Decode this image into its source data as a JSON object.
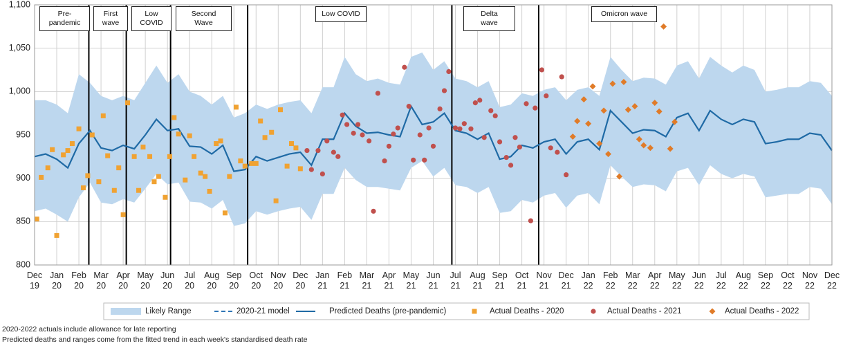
{
  "chart_data": {
    "type": "line",
    "x": [
      0,
      0.5,
      1,
      1.5,
      2,
      2.5,
      3,
      3.5,
      4,
      4.5,
      5,
      5.5,
      6,
      6.5,
      7,
      7.5,
      8,
      8.5,
      9,
      9.5,
      10,
      10.5,
      11,
      11.5,
      12,
      12.5,
      13,
      13.5,
      14,
      14.5,
      15,
      15.5,
      16,
      16.5,
      17,
      17.5,
      18,
      18.5,
      19,
      19.5,
      20,
      20.5,
      21,
      21.5,
      22,
      22.5,
      23,
      23.5,
      24,
      24.5,
      25,
      25.5,
      26,
      26.5,
      27,
      27.5,
      28,
      28.5,
      29,
      29.5,
      30,
      30.5,
      31,
      31.5,
      32,
      32.5,
      33,
      33.5,
      34,
      34.5,
      35,
      35.5,
      36
    ],
    "xlim": [
      0,
      36
    ],
    "xticks": [
      {
        "value": 0,
        "label": "Dec 19"
      },
      {
        "value": 1,
        "label": "Jan 20"
      },
      {
        "value": 2,
        "label": "Feb 20"
      },
      {
        "value": 3,
        "label": "Mar 20"
      },
      {
        "value": 4,
        "label": "Apr 20"
      },
      {
        "value": 5,
        "label": "May 20"
      },
      {
        "value": 6,
        "label": "Jun 20"
      },
      {
        "value": 7,
        "label": "Jul 20"
      },
      {
        "value": 8,
        "label": "Aug 20"
      },
      {
        "value": 9,
        "label": "Sep 20"
      },
      {
        "value": 10,
        "label": "Oct 20"
      },
      {
        "value": 11,
        "label": "Nov 20"
      },
      {
        "value": 12,
        "label": "Dec 20"
      },
      {
        "value": 13,
        "label": "Jan 21"
      },
      {
        "value": 14,
        "label": "Feb 21"
      },
      {
        "value": 15,
        "label": "Mar 21"
      },
      {
        "value": 16,
        "label": "Apr 21"
      },
      {
        "value": 17,
        "label": "May 21"
      },
      {
        "value": 18,
        "label": "Jun 21"
      },
      {
        "value": 19,
        "label": "Jul 21"
      },
      {
        "value": 20,
        "label": "Aug 21"
      },
      {
        "value": 21,
        "label": "Sep 21"
      },
      {
        "value": 22,
        "label": "Oct 21"
      },
      {
        "value": 23,
        "label": "Nov 21"
      },
      {
        "value": 24,
        "label": "Dec 21"
      },
      {
        "value": 25,
        "label": "Jan 22"
      },
      {
        "value": 26,
        "label": "Feb 22"
      },
      {
        "value": 27,
        "label": "Mar 22"
      },
      {
        "value": 28,
        "label": "Apr 22"
      },
      {
        "value": 29,
        "label": "May 22"
      },
      {
        "value": 30,
        "label": "Jun 22"
      },
      {
        "value": 31,
        "label": "Jul 22"
      },
      {
        "value": 32,
        "label": "Aug 22"
      },
      {
        "value": 33,
        "label": "Sep 22"
      },
      {
        "value": 34,
        "label": "Oct 22"
      },
      {
        "value": 35,
        "label": "Nov 22"
      },
      {
        "value": 36,
        "label": "Dec 22"
      }
    ],
    "ylim": [
      800,
      1100
    ],
    "yticks": [
      800,
      850,
      900,
      950,
      {
        "value": 1000,
        "label": "1,000"
      },
      {
        "value": 1050,
        "label": "1,050"
      },
      {
        "value": 1100,
        "label": "1,100"
      }
    ],
    "grid": true,
    "band": {
      "name": "Likely Range",
      "color": "#bdd7ee",
      "upper": [
        990,
        990,
        985,
        975,
        1020,
        1010,
        995,
        990,
        995,
        990,
        1010,
        1030,
        1010,
        1020,
        1000,
        995,
        985,
        995,
        970,
        975,
        985,
        980,
        985,
        988,
        990,
        975,
        1005,
        1005,
        1040,
        1020,
        1012,
        1015,
        1010,
        1008,
        1040,
        1045,
        1025,
        1035,
        1015,
        1012,
        1005,
        1012,
        982,
        985,
        998,
        995,
        1002,
        1005,
        990,
        1002,
        1005,
        995,
        1040,
        1025,
        1012,
        1016,
        1015,
        1008,
        1030,
        1035,
        1015,
        1040,
        1030,
        1022,
        1030,
        1025,
        1000,
        1002,
        1005,
        1005,
        1012,
        1010,
        995
      ],
      "lower": [
        862,
        865,
        858,
        850,
        878,
        895,
        872,
        870,
        876,
        872,
        888,
        905,
        893,
        895,
        873,
        872,
        865,
        875,
        845,
        848,
        862,
        858,
        862,
        865,
        867,
        852,
        882,
        882,
        912,
        898,
        890,
        890,
        888,
        886,
        912,
        920,
        902,
        912,
        892,
        890,
        883,
        890,
        860,
        862,
        875,
        872,
        880,
        883,
        866,
        880,
        883,
        870,
        915,
        902,
        890,
        893,
        892,
        885,
        908,
        912,
        892,
        915,
        905,
        900,
        905,
        902,
        878,
        880,
        882,
        882,
        890,
        888,
        870
      ]
    },
    "series": [
      {
        "name": "2020-21 model",
        "color": "#2e75b6",
        "style": "dashed"
      },
      {
        "name": "Predicted Deaths (pre-pandemic)",
        "color": "#1f6aa5",
        "style": "solid",
        "values": [
          925,
          928,
          922,
          912,
          940,
          955,
          935,
          932,
          938,
          934,
          950,
          968,
          955,
          957,
          937,
          936,
          928,
          938,
          908,
          910,
          925,
          920,
          924,
          928,
          930,
          915,
          945,
          945,
          975,
          960,
          952,
          953,
          950,
          948,
          983,
          962,
          965,
          975,
          955,
          952,
          945,
          952,
          922,
          925,
          938,
          935,
          942,
          945,
          928,
          942,
          945,
          933,
          978,
          965,
          952,
          956,
          955,
          948,
          970,
          975,
          955,
          978,
          968,
          962,
          968,
          965,
          940,
          942,
          945,
          945,
          952,
          950,
          932
        ]
      }
    ],
    "scatter": [
      {
        "name": "Actual Deaths - 2020",
        "color": "#f0a232",
        "marker": "square",
        "x": [
          0.1,
          0.3,
          0.6,
          0.8,
          1.0,
          1.3,
          1.5,
          1.7,
          2.0,
          2.2,
          2.4,
          2.6,
          2.9,
          3.1,
          3.3,
          3.6,
          3.8,
          4.0,
          4.2,
          4.5,
          4.7,
          4.9,
          5.2,
          5.4,
          5.6,
          5.9,
          6.1,
          6.3,
          6.5,
          6.8,
          7.0,
          7.2,
          7.5,
          7.7,
          7.9,
          8.2,
          8.4,
          8.6,
          8.8,
          9.1,
          9.3,
          9.5,
          9.8,
          10.0,
          10.2,
          10.4,
          10.7,
          10.9,
          11.1,
          11.4,
          11.6,
          11.8,
          12.0
        ],
        "y": [
          853,
          901,
          912,
          933,
          834,
          927,
          932,
          940,
          957,
          889,
          903,
          950,
          896,
          972,
          926,
          886,
          912,
          858,
          987,
          925,
          886,
          936,
          925,
          896,
          902,
          878,
          925,
          970,
          951,
          898,
          949,
          925,
          906,
          902,
          885,
          940,
          943,
          860,
          902,
          982,
          920,
          914,
          917,
          917,
          966,
          947,
          953,
          874,
          979,
          914,
          940,
          935,
          911
        ]
      },
      {
        "name": "Actual Deaths - 2021",
        "color": "#c0504d",
        "marker": "circle",
        "x": [
          12.3,
          12.5,
          12.8,
          13.0,
          13.2,
          13.5,
          13.7,
          13.9,
          14.1,
          14.4,
          14.6,
          14.8,
          15.1,
          15.3,
          15.5,
          15.8,
          16.0,
          16.2,
          16.4,
          16.7,
          16.9,
          17.1,
          17.4,
          17.6,
          17.8,
          18.0,
          18.3,
          18.5,
          18.7,
          19.0,
          19.2,
          19.4,
          19.7,
          19.9,
          20.1,
          20.3,
          20.6,
          20.8,
          21.0,
          21.3,
          21.5,
          21.7,
          21.9,
          22.2,
          22.4,
          22.6,
          22.9,
          23.1,
          23.3,
          23.6,
          23.8,
          24.0
        ],
        "y": [
          932,
          910,
          932,
          905,
          943,
          930,
          925,
          973,
          962,
          952,
          962,
          950,
          943,
          862,
          998,
          920,
          937,
          951,
          958,
          1028,
          983,
          921,
          950,
          921,
          958,
          937,
          980,
          1001,
          1023,
          958,
          957,
          963,
          957,
          987,
          990,
          947,
          978,
          972,
          942,
          924,
          915,
          947,
          936,
          986,
          851,
          981,
          1025,
          995,
          935,
          930,
          1017,
          904
        ]
      },
      {
        "name": "Actual Deaths - 2022",
        "color": "#e07b28",
        "marker": "diamond",
        "x": [
          24.3,
          24.5,
          24.8,
          25.0,
          25.2,
          25.5,
          25.7,
          25.9,
          26.1,
          26.4,
          26.6,
          26.8,
          27.1,
          27.3,
          27.5,
          27.8,
          28.0,
          28.2,
          28.4,
          28.7,
          28.9
        ],
        "y": [
          948,
          966,
          991,
          963,
          1006,
          940,
          978,
          928,
          1009,
          902,
          1011,
          979,
          983,
          945,
          938,
          935,
          987,
          977,
          1075,
          934,
          965
        ]
      }
    ],
    "phases": {
      "boundaries": [
        2.45,
        4.14,
        6.14,
        9.62,
        18.84,
        22.76
      ],
      "labels": [
        "Pre-\npandemic",
        "First\nwave",
        "Low\nCOVID",
        "Second\nWave",
        "Low COVID",
        "Delta\nwave",
        "Omicron wave"
      ]
    },
    "notes": [
      "2020-2022 actuals include allowance for late reporting",
      "Predicted deaths and ranges come from the fitted trend in each week's standardised death rate"
    ]
  }
}
